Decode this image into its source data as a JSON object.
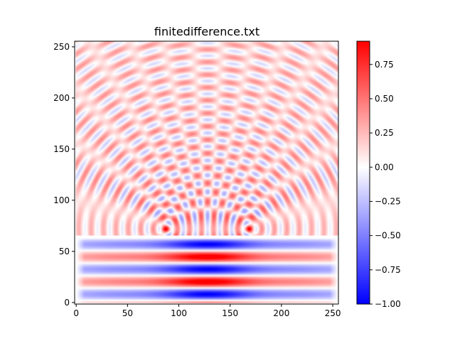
{
  "chart_data": {
    "type": "heatmap",
    "title": "finitedifference.txt",
    "xlabel": "",
    "ylabel": "",
    "xlim": [
      -1.5,
      255.5
    ],
    "ylim": [
      -1.5,
      255.5
    ],
    "x_ticks": [
      0,
      50,
      100,
      150,
      200,
      250
    ],
    "y_ticks": [
      0,
      50,
      100,
      150,
      200,
      250
    ],
    "x_tick_labels": [
      "0",
      "50",
      "100",
      "150",
      "200",
      "250"
    ],
    "y_tick_labels": [
      "0",
      "50",
      "100",
      "150",
      "200",
      "250"
    ],
    "colormap": "bwr",
    "colormap_stops": [
      "#0000ff",
      "#ffffff",
      "#ff0000"
    ],
    "value_range": [
      -1.0,
      0.92
    ],
    "colorbar_ticks": [
      -1.0,
      -0.75,
      -0.5,
      -0.25,
      0.0,
      0.25,
      0.5,
      0.75
    ],
    "colorbar_tick_labels": [
      "−1.00",
      "−0.75",
      "−0.50",
      "−0.25",
      "0.00",
      "0.25",
      "0.50",
      "0.75"
    ],
    "grid": false,
    "features": {
      "lower_band_y": [
        0,
        62
      ],
      "lower_band_rows": [
        {
          "y": 8,
          "value": -0.9
        },
        {
          "y": 20,
          "value": 0.85
        },
        {
          "y": 32,
          "value": -0.8
        },
        {
          "y": 45,
          "value": 0.75
        },
        {
          "y": 57,
          "value": -0.95
        }
      ],
      "slit_openings_x": [
        [
          80,
          96
        ],
        [
          160,
          176
        ]
      ],
      "upper_field": "circular diffraction wavefronts emanating from two slits at y≈70, amplitude ≈ ±0.3 to ±0.5",
      "upper_field_peak_points": [
        {
          "x": 88,
          "y": 73,
          "value": 0.7
        },
        {
          "x": 168,
          "y": 73,
          "value": 0.7
        },
        {
          "x": 128,
          "y": 143,
          "value": 0.55
        },
        {
          "x": 128,
          "y": 131,
          "value": -0.5
        }
      ]
    }
  }
}
